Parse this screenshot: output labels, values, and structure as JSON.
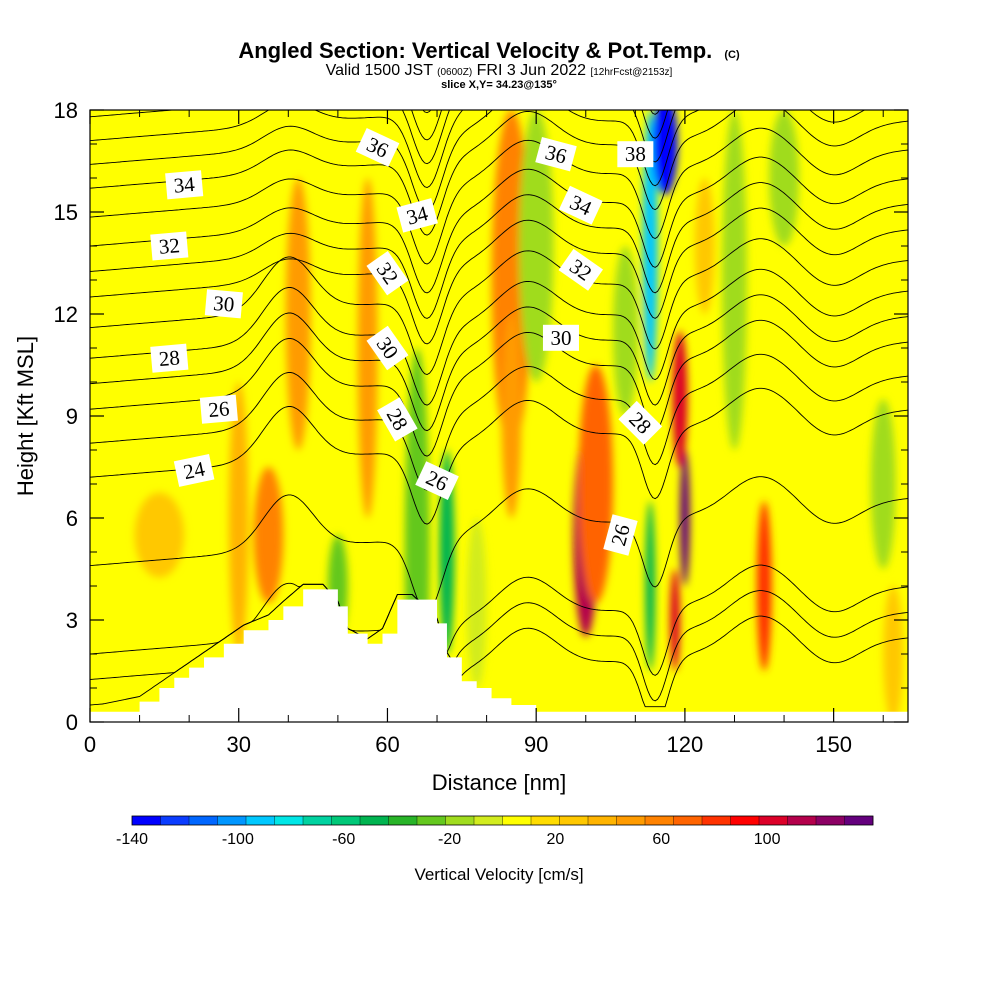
{
  "title": {
    "main": "Angled Section: Vertical Velocity & Pot.Temp.",
    "main_suffix": "(C)",
    "valid_prefix": "Valid 1500 JST",
    "valid_zulu": "(0600Z)",
    "valid_date": "FRI 3 Jun 2022",
    "forecast": "[12hrFcst@2153z]",
    "slice": "slice X,Y= 34.23@135°"
  },
  "chart_data": {
    "type": "heatmap",
    "xlabel": "Distance [nm]",
    "ylabel": "Height [Kft MSL]",
    "xlim": [
      0,
      165
    ],
    "ylim": [
      0,
      18
    ],
    "x_ticks": [
      0,
      30,
      60,
      90,
      120,
      150
    ],
    "y_ticks": [
      0,
      3,
      6,
      9,
      12,
      15,
      18
    ],
    "colorbar": {
      "label": "Vertical Velocity [cm/s]",
      "min": -140,
      "max": 140,
      "step": 10,
      "tick_values": [
        -140,
        -100,
        -60,
        -20,
        20,
        60,
        100
      ],
      "colors": [
        "#0000ff",
        "#0a3cff",
        "#0066ff",
        "#0096ff",
        "#00c8ff",
        "#00e6e6",
        "#00d2a0",
        "#00c878",
        "#00b450",
        "#28b428",
        "#64c81e",
        "#a0dc1e",
        "#d2ec1e",
        "#ffff00",
        "#ffdc00",
        "#ffc800",
        "#ffb400",
        "#ff9b00",
        "#ff8200",
        "#ff6400",
        "#ff3200",
        "#ff0000",
        "#dc0028",
        "#b4004b",
        "#8c0064",
        "#64007d"
      ]
    },
    "vertical_velocity_features": [
      {
        "x": 14,
        "z": 5.5,
        "width_nm": 10,
        "height_kft": 2.5,
        "value": 10
      },
      {
        "x": 30,
        "z": 6.0,
        "width_nm": 4,
        "height_kft": 8,
        "value": 20
      },
      {
        "x": 36,
        "z": 5.5,
        "width_nm": 6,
        "height_kft": 4,
        "value": 40
      },
      {
        "x": 42,
        "z": 12.0,
        "width_nm": 5,
        "height_kft": 8,
        "value": 30
      },
      {
        "x": 56,
        "z": 11.0,
        "width_nm": 4,
        "height_kft": 10,
        "value": 30
      },
      {
        "x": 50,
        "z": 4.0,
        "width_nm": 4,
        "height_kft": 3,
        "value": -40
      },
      {
        "x": 66,
        "z": 5.0,
        "width_nm": 5,
        "height_kft": 12,
        "value": -40
      },
      {
        "x": 72,
        "z": 5.0,
        "width_nm": 3,
        "height_kft": 6,
        "value": -60
      },
      {
        "x": 78,
        "z": 3.5,
        "width_nm": 4,
        "height_kft": 5,
        "value": -20
      },
      {
        "x": 85,
        "z": 13.0,
        "width_nm": 8,
        "height_kft": 10,
        "value": 40
      },
      {
        "x": 85,
        "z": 9.0,
        "width_nm": 4,
        "height_kft": 6,
        "value": 30
      },
      {
        "x": 100,
        "z": 5.5,
        "width_nm": 5,
        "height_kft": 6,
        "value": 90
      },
      {
        "x": 102,
        "z": 7.0,
        "width_nm": 7,
        "height_kft": 7,
        "value": 50
      },
      {
        "x": 90,
        "z": 14.0,
        "width_nm": 7,
        "height_kft": 8,
        "value": -30
      },
      {
        "x": 108,
        "z": 11.5,
        "width_nm": 5,
        "height_kft": 5,
        "value": -30
      },
      {
        "x": 113,
        "z": 14.0,
        "width_nm": 3,
        "height_kft": 8,
        "value": -100
      },
      {
        "x": 116,
        "z": 17.0,
        "width_nm": 5,
        "height_kft": 3,
        "value": -140
      },
      {
        "x": 113,
        "z": 4.0,
        "width_nm": 2,
        "height_kft": 5,
        "value": -60
      },
      {
        "x": 120,
        "z": 6.0,
        "width_nm": 2,
        "height_kft": 4,
        "value": 140
      },
      {
        "x": 119,
        "z": 9.5,
        "width_nm": 3,
        "height_kft": 4,
        "value": 80
      },
      {
        "x": 118,
        "z": 3.0,
        "width_nm": 2,
        "height_kft": 3,
        "value": 80
      },
      {
        "x": 124,
        "z": 14.0,
        "width_nm": 4,
        "height_kft": 4,
        "value": 10
      },
      {
        "x": 130,
        "z": 13.0,
        "width_nm": 5,
        "height_kft": 10,
        "value": -30
      },
      {
        "x": 136,
        "z": 4.0,
        "width_nm": 3,
        "height_kft": 5,
        "value": 60
      },
      {
        "x": 140,
        "z": 16.0,
        "width_nm": 6,
        "height_kft": 4,
        "value": -30
      },
      {
        "x": 147,
        "z": 6.0,
        "width_nm": 5,
        "height_kft": 6,
        "value": -15
      },
      {
        "x": 160,
        "z": 7.0,
        "width_nm": 5,
        "height_kft": 5,
        "value": -30
      },
      {
        "x": 162,
        "z": 2.0,
        "width_nm": 4,
        "height_kft": 4,
        "value": 10
      }
    ],
    "terrain": {
      "x": [
        0,
        10,
        14,
        17,
        20,
        23,
        27,
        31,
        36,
        39,
        43,
        47,
        50,
        52,
        56,
        59,
        62,
        65,
        70,
        72,
        75,
        78,
        81,
        85,
        90,
        165
      ],
      "z": [
        0.3,
        0.6,
        1.0,
        1.3,
        1.6,
        1.9,
        2.3,
        2.7,
        3.0,
        3.4,
        3.9,
        3.9,
        3.4,
        2.6,
        2.3,
        2.6,
        3.6,
        3.6,
        2.9,
        1.9,
        1.2,
        1.0,
        0.7,
        0.5,
        0.3,
        0.3
      ]
    },
    "theta_contours": {
      "levels": [
        20,
        21,
        22,
        23,
        24,
        25,
        26,
        27,
        28,
        29,
        30,
        31,
        32,
        33,
        34,
        35,
        36,
        37,
        38,
        39
      ],
      "base_height_at_x0_kft": {
        "20": 0.5,
        "22": 2.0,
        "24": 7.2,
        "26": 9.2,
        "28": 10.7,
        "30": 12.5,
        "32": 14.0,
        "34": 15.7,
        "36": 17.1,
        "38": 18.5
      },
      "labels": [
        {
          "value": "24",
          "x": 21,
          "z": 7.4,
          "angle": -12
        },
        {
          "value": "26",
          "x": 26,
          "z": 9.2,
          "angle": -5
        },
        {
          "value": "28",
          "x": 16,
          "z": 10.7,
          "angle": -5
        },
        {
          "value": "30",
          "x": 27,
          "z": 12.3,
          "angle": 5
        },
        {
          "value": "32",
          "x": 16,
          "z": 14.0,
          "angle": -5
        },
        {
          "value": "34",
          "x": 19,
          "z": 15.8,
          "angle": -5
        },
        {
          "value": "36",
          "x": 58,
          "z": 16.9,
          "angle": 25
        },
        {
          "value": "34",
          "x": 66,
          "z": 14.9,
          "angle": -15
        },
        {
          "value": "32",
          "x": 60,
          "z": 13.2,
          "angle": 55
        },
        {
          "value": "30",
          "x": 60,
          "z": 11.0,
          "angle": 55
        },
        {
          "value": "28",
          "x": 62,
          "z": 8.9,
          "angle": 60
        },
        {
          "value": "26",
          "x": 70,
          "z": 7.1,
          "angle": 25
        },
        {
          "value": "36",
          "x": 94,
          "z": 16.7,
          "angle": 15
        },
        {
          "value": "38",
          "x": 110,
          "z": 16.7,
          "angle": 0
        },
        {
          "value": "34",
          "x": 99,
          "z": 15.2,
          "angle": 25
        },
        {
          "value": "32",
          "x": 99,
          "z": 13.3,
          "angle": 35
        },
        {
          "value": "30",
          "x": 95,
          "z": 11.3,
          "angle": 0
        },
        {
          "value": "28",
          "x": 111,
          "z": 8.8,
          "angle": 45
        },
        {
          "value": "26",
          "x": 107,
          "z": 5.5,
          "angle": -75
        }
      ]
    }
  }
}
